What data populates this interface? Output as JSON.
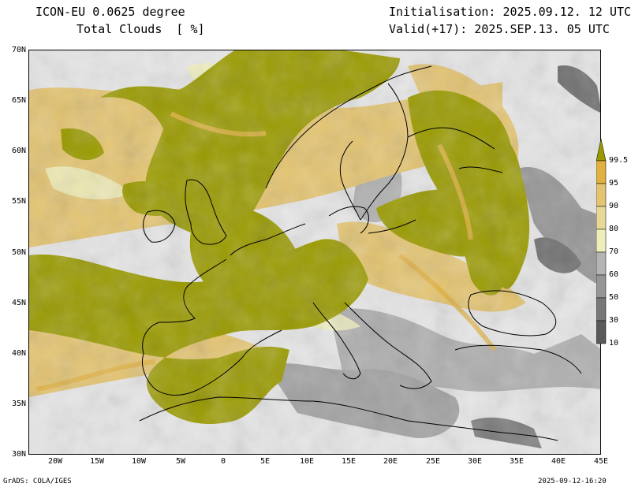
{
  "header": {
    "model_title": "ICON-EU 0.0625 degree",
    "variable": "Total Clouds  [ %]",
    "initialisation": "Initialisation: 2025.09.12. 12 UTC",
    "valid": "Valid(+17): 2025.SEP.13. 05 UTC"
  },
  "map": {
    "lat_labels": [
      "70N",
      "65N",
      "60N",
      "55N",
      "50N",
      "45N",
      "40N",
      "35N",
      "30N"
    ],
    "lon_labels": [
      "20W",
      "15W",
      "10W",
      "5W",
      "0",
      "5E",
      "10E",
      "15E",
      "20E",
      "25E",
      "30E",
      "35E",
      "40E",
      "45E"
    ]
  },
  "legend": {
    "levels": [
      "10",
      "30",
      "50",
      "60",
      "70",
      "80",
      "90",
      "95",
      "99.5"
    ],
    "colors": [
      "#5a5a5a",
      "#787878",
      "#969696",
      "#b4b4b4",
      "#eeeebb",
      "#e8d898",
      "#e4c470",
      "#e0b040",
      "#9a9a00"
    ]
  },
  "footer": {
    "left": "GrADS: COLA/IGES",
    "right": "2025-09-12-16:20"
  }
}
